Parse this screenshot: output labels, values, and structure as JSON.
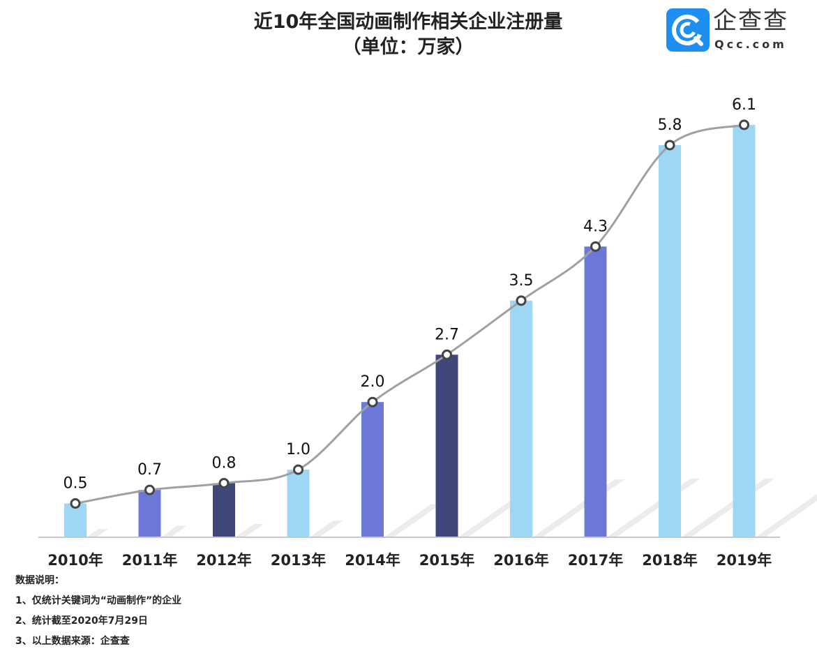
{
  "logo": {
    "brand": "企查查",
    "domain": "Qcc.com"
  },
  "chart_data": {
    "type": "bar",
    "title": "近10年全国动画制作相关企业注册量",
    "subtitle": "（单位：万家）",
    "categories": [
      "2010年",
      "2011年",
      "2012年",
      "2013年",
      "2014年",
      "2015年",
      "2016年",
      "2017年",
      "2018年",
      "2019年"
    ],
    "values": [
      0.5,
      0.7,
      0.8,
      1.0,
      2.0,
      2.7,
      3.5,
      4.3,
      5.8,
      6.1
    ],
    "data_labels": [
      "0.5",
      "0.7",
      "0.8",
      "1.0",
      "2.0",
      "2.7",
      "3.5",
      "4.3",
      "5.8",
      "6.1"
    ],
    "overlay": "smoothed line with circle markers through bar tops",
    "bar_colors": [
      "#9dd7f3",
      "#6c78d8",
      "#40477a",
      "#9dd7f3",
      "#6c78d8",
      "#40477a",
      "#9dd7f3",
      "#6c78d8",
      "#9dd7f3",
      "#9dd7f3"
    ],
    "line_color": "#a0a0a0",
    "ylim": [
      0,
      6.5
    ],
    "grid": false,
    "legend": "none"
  },
  "notes": {
    "heading": "数据说明：",
    "items": [
      "1、仅统计关键词为“动画制作”的企业",
      "2、统计截至2020年7月29日",
      "3、以上数据来源：企查查"
    ]
  }
}
